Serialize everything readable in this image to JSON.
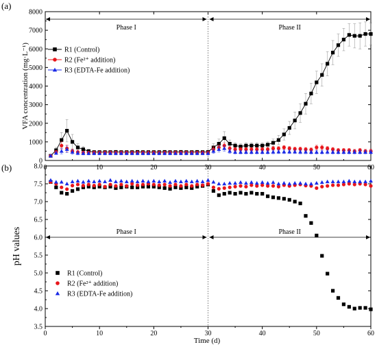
{
  "figure": {
    "panels": [
      "(a)",
      "(b)"
    ],
    "xlabel": "Time (d)"
  },
  "chart_data": [
    {
      "type": "line",
      "panel_label": "(a)",
      "xlabel": "",
      "ylabel": "VFA  concentration (mg·L⁻¹)",
      "xlim": [
        0,
        60
      ],
      "ylim": [
        0,
        8000
      ],
      "x_ticks": [
        0,
        10,
        20,
        30,
        40,
        50,
        60
      ],
      "y_ticks": [
        0,
        1000,
        2000,
        3000,
        4000,
        5000,
        6000,
        7000,
        8000
      ],
      "grid": false,
      "legend_position": "top-left",
      "phase_divider_x": 30,
      "phases": [
        {
          "label": "Phase I",
          "from": 0,
          "to": 30
        },
        {
          "label": "Phase II",
          "from": 30,
          "to": 60
        }
      ],
      "x": [
        1,
        2,
        3,
        4,
        5,
        6,
        7,
        8,
        9,
        10,
        11,
        12,
        13,
        14,
        15,
        16,
        17,
        18,
        19,
        20,
        21,
        22,
        23,
        24,
        25,
        26,
        27,
        28,
        29,
        30,
        31,
        32,
        33,
        34,
        35,
        36,
        37,
        38,
        39,
        40,
        41,
        42,
        43,
        44,
        45,
        46,
        47,
        48,
        49,
        50,
        51,
        52,
        53,
        54,
        55,
        56,
        57,
        58,
        59,
        60
      ],
      "series": [
        {
          "name": "R1 (Control)",
          "color": "#000000",
          "marker": "square",
          "connected": true,
          "values": [
            250,
            550,
            1100,
            1600,
            1000,
            700,
            600,
            500,
            450,
            450,
            450,
            450,
            460,
            450,
            450,
            450,
            460,
            450,
            450,
            450,
            450,
            460,
            450,
            450,
            460,
            450,
            450,
            460,
            450,
            460,
            700,
            900,
            1200,
            900,
            800,
            750,
            800,
            800,
            800,
            800,
            850,
            950,
            1100,
            1400,
            1750,
            2150,
            2550,
            3050,
            3600,
            4200,
            4600,
            5200,
            5800,
            6200,
            6500,
            6750,
            6700,
            6700,
            6800,
            6800
          ],
          "error": [
            60,
            150,
            400,
            600,
            400,
            200,
            150,
            100,
            80,
            80,
            80,
            80,
            80,
            80,
            80,
            80,
            80,
            80,
            80,
            80,
            80,
            80,
            80,
            80,
            80,
            80,
            80,
            80,
            80,
            80,
            200,
            250,
            350,
            200,
            150,
            150,
            150,
            150,
            150,
            150,
            150,
            200,
            250,
            300,
            350,
            450,
            500,
            550,
            550,
            600,
            600,
            650,
            650,
            600,
            600,
            600,
            650,
            700,
            650,
            600
          ]
        },
        {
          "name": "R2 (Fe²⁺ addition)",
          "color": "#e8161b",
          "marker": "circle",
          "connected": false,
          "values": [
            250,
            450,
            800,
            650,
            500,
            450,
            420,
            420,
            420,
            420,
            420,
            420,
            420,
            420,
            420,
            420,
            420,
            420,
            420,
            420,
            420,
            420,
            420,
            420,
            420,
            420,
            420,
            420,
            420,
            420,
            600,
            700,
            800,
            650,
            600,
            600,
            600,
            600,
            600,
            600,
            600,
            650,
            650,
            700,
            650,
            620,
            620,
            600,
            580,
            700,
            700,
            650,
            600,
            550,
            550,
            550,
            500,
            550,
            500,
            500
          ],
          "error": [
            50,
            100,
            200,
            180,
            120,
            100,
            80,
            80,
            80,
            80,
            80,
            80,
            80,
            80,
            80,
            80,
            80,
            80,
            80,
            80,
            80,
            80,
            80,
            80,
            80,
            80,
            80,
            80,
            80,
            80,
            150,
            150,
            150,
            120,
            100,
            100,
            100,
            100,
            100,
            100,
            100,
            100,
            100,
            100,
            100,
            100,
            100,
            100,
            100,
            120,
            120,
            100,
            100,
            100,
            100,
            100,
            100,
            100,
            100,
            100
          ]
        },
        {
          "name": "R3 (EDTA-Fe addition)",
          "color": "#1a2ae6",
          "marker": "triangle",
          "connected": false,
          "values": [
            250,
            400,
            500,
            600,
            450,
            400,
            380,
            380,
            380,
            380,
            380,
            380,
            380,
            380,
            380,
            380,
            380,
            380,
            380,
            380,
            380,
            380,
            380,
            380,
            380,
            380,
            380,
            380,
            380,
            380,
            500,
            600,
            650,
            500,
            450,
            450,
            450,
            450,
            450,
            450,
            450,
            460,
            470,
            470,
            470,
            470,
            460,
            460,
            450,
            450,
            450,
            460,
            450,
            450,
            450,
            450,
            450,
            450,
            450,
            450
          ],
          "error": [
            50,
            80,
            150,
            180,
            120,
            100,
            80,
            80,
            80,
            80,
            80,
            80,
            80,
            80,
            80,
            80,
            80,
            80,
            80,
            80,
            80,
            80,
            80,
            80,
            80,
            80,
            80,
            80,
            80,
            80,
            120,
            150,
            150,
            120,
            100,
            100,
            100,
            100,
            100,
            100,
            100,
            100,
            100,
            100,
            100,
            100,
            100,
            100,
            100,
            100,
            100,
            100,
            100,
            100,
            100,
            100,
            100,
            100,
            100,
            100
          ]
        }
      ]
    },
    {
      "type": "scatter",
      "panel_label": "(b)",
      "xlabel": "Time (d)",
      "ylabel": "pH values",
      "xlim": [
        0,
        60
      ],
      "ylim": [
        3.5,
        8.0
      ],
      "x_ticks": [
        0,
        10,
        20,
        30,
        40,
        50,
        60
      ],
      "y_ticks": [
        3.5,
        4.0,
        4.5,
        5.0,
        5.5,
        6.0,
        6.5,
        7.0,
        7.5,
        8.0
      ],
      "grid": false,
      "legend_position": "bottom-left",
      "phase_divider_x": 30,
      "phase_arrow_y": 6.0,
      "phases": [
        {
          "label": "Phase I",
          "from": 0,
          "to": 30
        },
        {
          "label": "Phase II",
          "from": 30,
          "to": 60
        }
      ],
      "x": [
        1,
        2,
        3,
        4,
        5,
        6,
        7,
        8,
        9,
        10,
        11,
        12,
        13,
        14,
        15,
        16,
        17,
        18,
        19,
        20,
        21,
        22,
        23,
        24,
        25,
        26,
        27,
        28,
        29,
        30,
        31,
        32,
        33,
        34,
        35,
        36,
        37,
        38,
        39,
        40,
        41,
        42,
        43,
        44,
        45,
        46,
        47,
        48,
        49,
        50,
        51,
        52,
        53,
        54,
        55,
        56,
        57,
        58,
        59,
        60
      ],
      "series": [
        {
          "name": "R1 (Control)",
          "color": "#000000",
          "marker": "square",
          "values": [
            7.55,
            7.4,
            7.25,
            7.22,
            7.3,
            7.35,
            7.4,
            7.42,
            7.4,
            7.42,
            7.4,
            7.42,
            7.38,
            7.4,
            7.42,
            7.4,
            7.4,
            7.42,
            7.42,
            7.42,
            7.4,
            7.38,
            7.36,
            7.4,
            7.38,
            7.4,
            7.38,
            7.42,
            7.44,
            7.48,
            7.3,
            7.18,
            7.22,
            7.25,
            7.22,
            7.25,
            7.22,
            7.25,
            7.22,
            7.22,
            7.15,
            7.12,
            7.1,
            7.08,
            7.05,
            7.0,
            6.95,
            6.6,
            6.4,
            6.05,
            5.48,
            4.98,
            4.5,
            4.3,
            4.12,
            4.05,
            4.0,
            4.02,
            4.02,
            3.98
          ]
        },
        {
          "name": "R2 (Fe²⁺ addition)",
          "color": "#e8161b",
          "marker": "circle",
          "values": [
            7.55,
            7.5,
            7.4,
            7.35,
            7.45,
            7.48,
            7.45,
            7.48,
            7.45,
            7.48,
            7.42,
            7.48,
            7.44,
            7.48,
            7.44,
            7.5,
            7.46,
            7.48,
            7.5,
            7.48,
            7.46,
            7.48,
            7.44,
            7.48,
            7.44,
            7.48,
            7.44,
            7.48,
            7.46,
            7.5,
            7.4,
            7.36,
            7.38,
            7.4,
            7.42,
            7.44,
            7.42,
            7.46,
            7.44,
            7.46,
            7.44,
            7.44,
            7.42,
            7.46,
            7.44,
            7.46,
            7.48,
            7.45,
            7.44,
            7.38,
            7.42,
            7.44,
            7.46,
            7.46,
            7.48,
            7.5,
            7.48,
            7.5,
            7.48,
            7.44
          ]
        },
        {
          "name": "R3 (EDTA-Fe addition)",
          "color": "#1a2ae6",
          "marker": "triangle",
          "values": [
            7.6,
            7.55,
            7.55,
            7.5,
            7.56,
            7.58,
            7.55,
            7.58,
            7.56,
            7.58,
            7.56,
            7.6,
            7.56,
            7.58,
            7.56,
            7.58,
            7.56,
            7.58,
            7.56,
            7.58,
            7.56,
            7.58,
            7.54,
            7.58,
            7.56,
            7.58,
            7.56,
            7.58,
            7.56,
            7.6,
            7.55,
            7.5,
            7.5,
            7.52,
            7.52,
            7.54,
            7.52,
            7.54,
            7.52,
            7.54,
            7.52,
            7.54,
            7.5,
            7.52,
            7.5,
            7.52,
            7.52,
            7.5,
            7.5,
            7.52,
            7.54,
            7.56,
            7.56,
            7.56,
            7.56,
            7.58,
            7.56,
            7.56,
            7.56,
            7.58
          ]
        }
      ]
    }
  ]
}
